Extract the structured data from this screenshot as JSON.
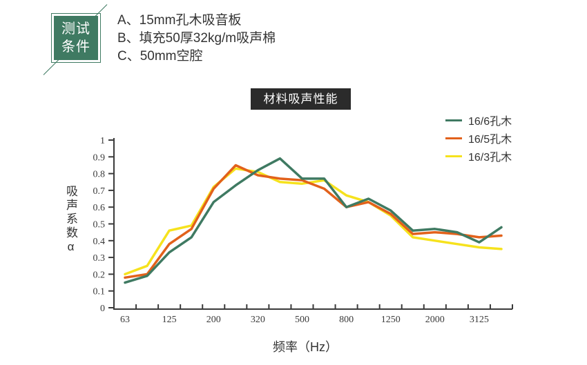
{
  "badge": {
    "line1": "测试",
    "line2": "条件"
  },
  "conditions": {
    "items": [
      {
        "label": "A、15mm孔木吸音板"
      },
      {
        "label": "B、填充50厚32kg/m吸声棉"
      },
      {
        "label": "C、50mm空腔"
      }
    ]
  },
  "title": "材料吸声性能",
  "colors": {
    "badge_green": "#3F7A62",
    "title_bar_bg": "#2B2B2B",
    "axis": "#3A3A3A"
  },
  "chart_data": {
    "type": "line",
    "title": "材料吸声性能",
    "xlabel": "频率（Hz）",
    "ylabel": "吸声系数α",
    "ylim": [
      0,
      1
    ],
    "y_tick_labels": [
      "0",
      "0.1",
      "0.2",
      "0.3",
      "0.4",
      "0.5",
      "0.6",
      "0.7",
      "0.8",
      "0.9",
      "1"
    ],
    "x_labels": [
      "63",
      "125",
      "200",
      "320",
      "500",
      "800",
      "1250",
      "2000",
      "3125"
    ],
    "x_label_point_indices": [
      0,
      2,
      4,
      6,
      8,
      10,
      12,
      14,
      16
    ],
    "points_per_series": 18,
    "grid": false,
    "legend_position": "top-right",
    "series": [
      {
        "name": "16/6孔木",
        "color": "#3F7A62",
        "values": [
          0.15,
          0.19,
          0.33,
          0.42,
          0.63,
          0.73,
          0.82,
          0.89,
          0.77,
          0.77,
          0.6,
          0.65,
          0.58,
          0.46,
          0.47,
          0.45,
          0.39,
          0.48
        ]
      },
      {
        "name": "16/5孔木",
        "color": "#E2611B",
        "values": [
          0.18,
          0.2,
          0.38,
          0.47,
          0.71,
          0.85,
          0.79,
          0.77,
          0.76,
          0.71,
          0.6,
          0.63,
          0.56,
          0.44,
          0.45,
          0.44,
          0.42,
          0.43
        ]
      },
      {
        "name": "16/3孔木",
        "color": "#F6E21D",
        "values": [
          0.2,
          0.25,
          0.46,
          0.49,
          0.72,
          0.83,
          0.81,
          0.75,
          0.74,
          0.76,
          0.67,
          0.63,
          0.55,
          0.42,
          0.4,
          0.38,
          0.36,
          0.35
        ]
      }
    ]
  }
}
